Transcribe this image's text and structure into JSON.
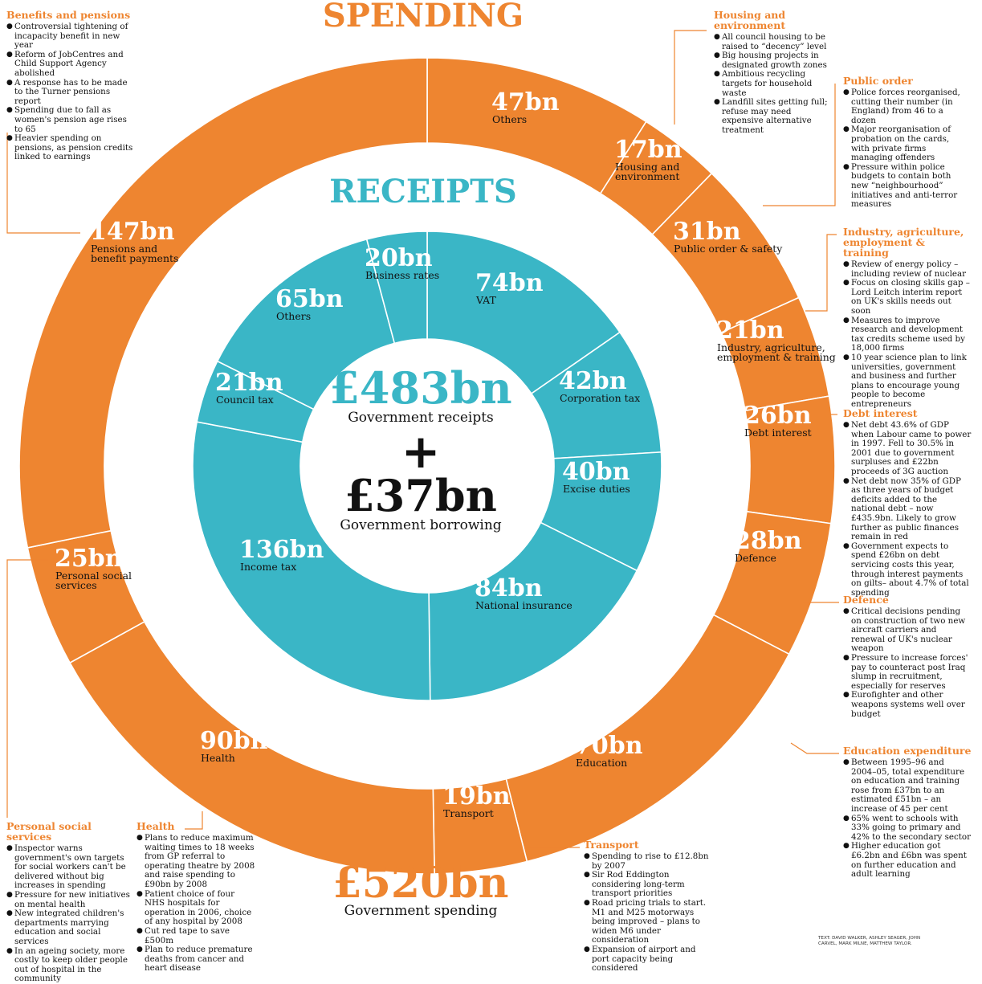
{
  "titles": {
    "spending": "SPENDING",
    "receipts": "RECEIPTS",
    "receipts_total": "£483bn",
    "receipts_total_label": "Government receipts",
    "plus": "+",
    "borrowing_total": "£37bn",
    "borrowing_label": "Government borrowing",
    "spending_total": "£520bn",
    "spending_total_label": "Government spending"
  },
  "colors": {
    "orange": "#ee8530",
    "teal": "#3ab6c6",
    "divider": "#ffffff",
    "leader": "#ee8530"
  },
  "chart_data": [
    {
      "type": "pie",
      "subtype": "donut",
      "title": "SPENDING",
      "total": "£520bn",
      "total_label": "Government spending",
      "unit": "£bn",
      "categories": [
        "Others",
        "Housing and environment",
        "Public order & safety",
        "Industry, agriculture, employment & training",
        "Debt interest",
        "Defence",
        "Education",
        "Transport",
        "Health",
        "Personal social services",
        "Pensions and benefit payments"
      ],
      "values": [
        47,
        17,
        31,
        21,
        26,
        28,
        70,
        19,
        90,
        25,
        147
      ],
      "value_labels": [
        "47bn",
        "17bn",
        "31bn",
        "21bn",
        "26bn",
        "28bn",
        "70bn",
        "19bn",
        "90bn",
        "25bn",
        "147bn"
      ]
    },
    {
      "type": "pie",
      "subtype": "donut",
      "title": "RECEIPTS",
      "total": "£483bn",
      "total_label": "Government receipts",
      "unit": "£bn",
      "categories": [
        "VAT",
        "Corporation tax",
        "Excise duties",
        "National insurance",
        "Income tax",
        "Council tax",
        "Others",
        "Business rates"
      ],
      "values": [
        74,
        42,
        40,
        84,
        136,
        21,
        65,
        20
      ],
      "value_labels": [
        "74bn",
        "42bn",
        "40bn",
        "84bn",
        "136bn",
        "21bn",
        "65bn",
        "20bn"
      ]
    }
  ],
  "annotations": {
    "benefits": {
      "title": "Benefits and pensions",
      "items": [
        "Controversial tightening of incapacity benefit in new year",
        "Reform of JobCentres and Child Support Agency abolished",
        "A response has to be made to the Turner pensions report",
        "Spending due to fall as women's pension age rises to 65",
        "Heavier spending on pensions, as pension credits linked to earnings"
      ]
    },
    "housing": {
      "title": "Housing and environment",
      "items": [
        "All council housing to be raised to “decency” level",
        "Big housing projects in designated growth zones",
        "Ambitious recycling targets for household waste",
        "Landfill sites getting full; refuse may need expensive alternative treatment"
      ]
    },
    "public_order": {
      "title": "Public order",
      "items": [
        "Police forces reorganised, cutting their number (in England) from 46 to a dozen",
        "Major reorganisation of probation on the cards, with private firms managing offenders",
        "Pressure within police budgets to contain both new “neighbourhood” initiatives and anti-terror measures"
      ]
    },
    "industry": {
      "title": "Industry, agriculture, employment & training",
      "items": [
        "Review of energy policy – including review of nuclear",
        "Focus on closing skills gap – Lord Leitch interim report on UK's skills needs out soon",
        "Measures to improve research and development tax credits scheme used by 18,000 firms",
        "10 year science plan to link universities, government and business and further plans to encourage young people to become entrepreneurs"
      ]
    },
    "debt": {
      "title": "Debt interest",
      "items": [
        "Net debt 43.6% of GDP when Labour came to power in 1997. Fell to 30.5% in 2001 due to government surpluses and £22bn proceeds of 3G auction",
        "Net debt now 35% of GDP as three years of budget deficits added to the national debt – now £435.9bn. Likely to grow further as public finances remain in red",
        "Government expects to spend £26bn on debt servicing costs this year, through interest payments on gilts– about 4.7% of total spending"
      ]
    },
    "defence": {
      "title": "Defence",
      "items": [
        "Critical decisions pending on construction of two new aircraft carriers and renewal of UK's nuclear weapon",
        "Pressure to increase forces' pay to counteract post Iraq slump in recruitment, especially for reserves",
        "Eurofighter and other weapons systems well over budget"
      ]
    },
    "education": {
      "title": "Education expenditure",
      "items": [
        "Between 1995–96 and 2004–05, total expenditure on education and training rose from £37bn to an estimated £51bn – an increase of 45 per cent",
        "65% went to schools with 33% going to primary and 42% to the secondary sector",
        "Higher education got £6.2bn and £6bn was spent on further education and adult learning"
      ]
    },
    "transport": {
      "title": "Transport",
      "items": [
        "Spending to rise to £12.8bn by 2007",
        "Sir Rod Eddington considering long-term transport priorities",
        "Road pricing trials to start. M1 and M25 motorways being improved – plans to widen M6 under consideration",
        "Expansion of airport and port capacity being considered"
      ]
    },
    "health": {
      "title": "Health",
      "items": [
        "Plans to reduce maximum waiting times to 18 weeks from GP referral to operating theatre by 2008 and raise spending to £90bn by 2008",
        "Patient choice of four NHS hospitals for operation in 2006, choice of any hospital by 2008",
        "Cut red tape to save £500m",
        "Plan to reduce premature deaths from cancer and heart disease"
      ]
    },
    "personal_social": {
      "title": "Personal social services",
      "items": [
        "Inspector warns government's own targets for social workers can't be delivered without big increases in spending",
        "Pressure for new initiatives on mental health",
        "New integrated children's departments marrying education and social services",
        "In an ageing society, more costly to keep older people out of hospital in the community"
      ]
    }
  },
  "credit": "TEXT: DAVID WALKER, ASHLEY SEAGER, JOHN CARVEL, MARK MILNE, MATTHEW TAYLOR."
}
